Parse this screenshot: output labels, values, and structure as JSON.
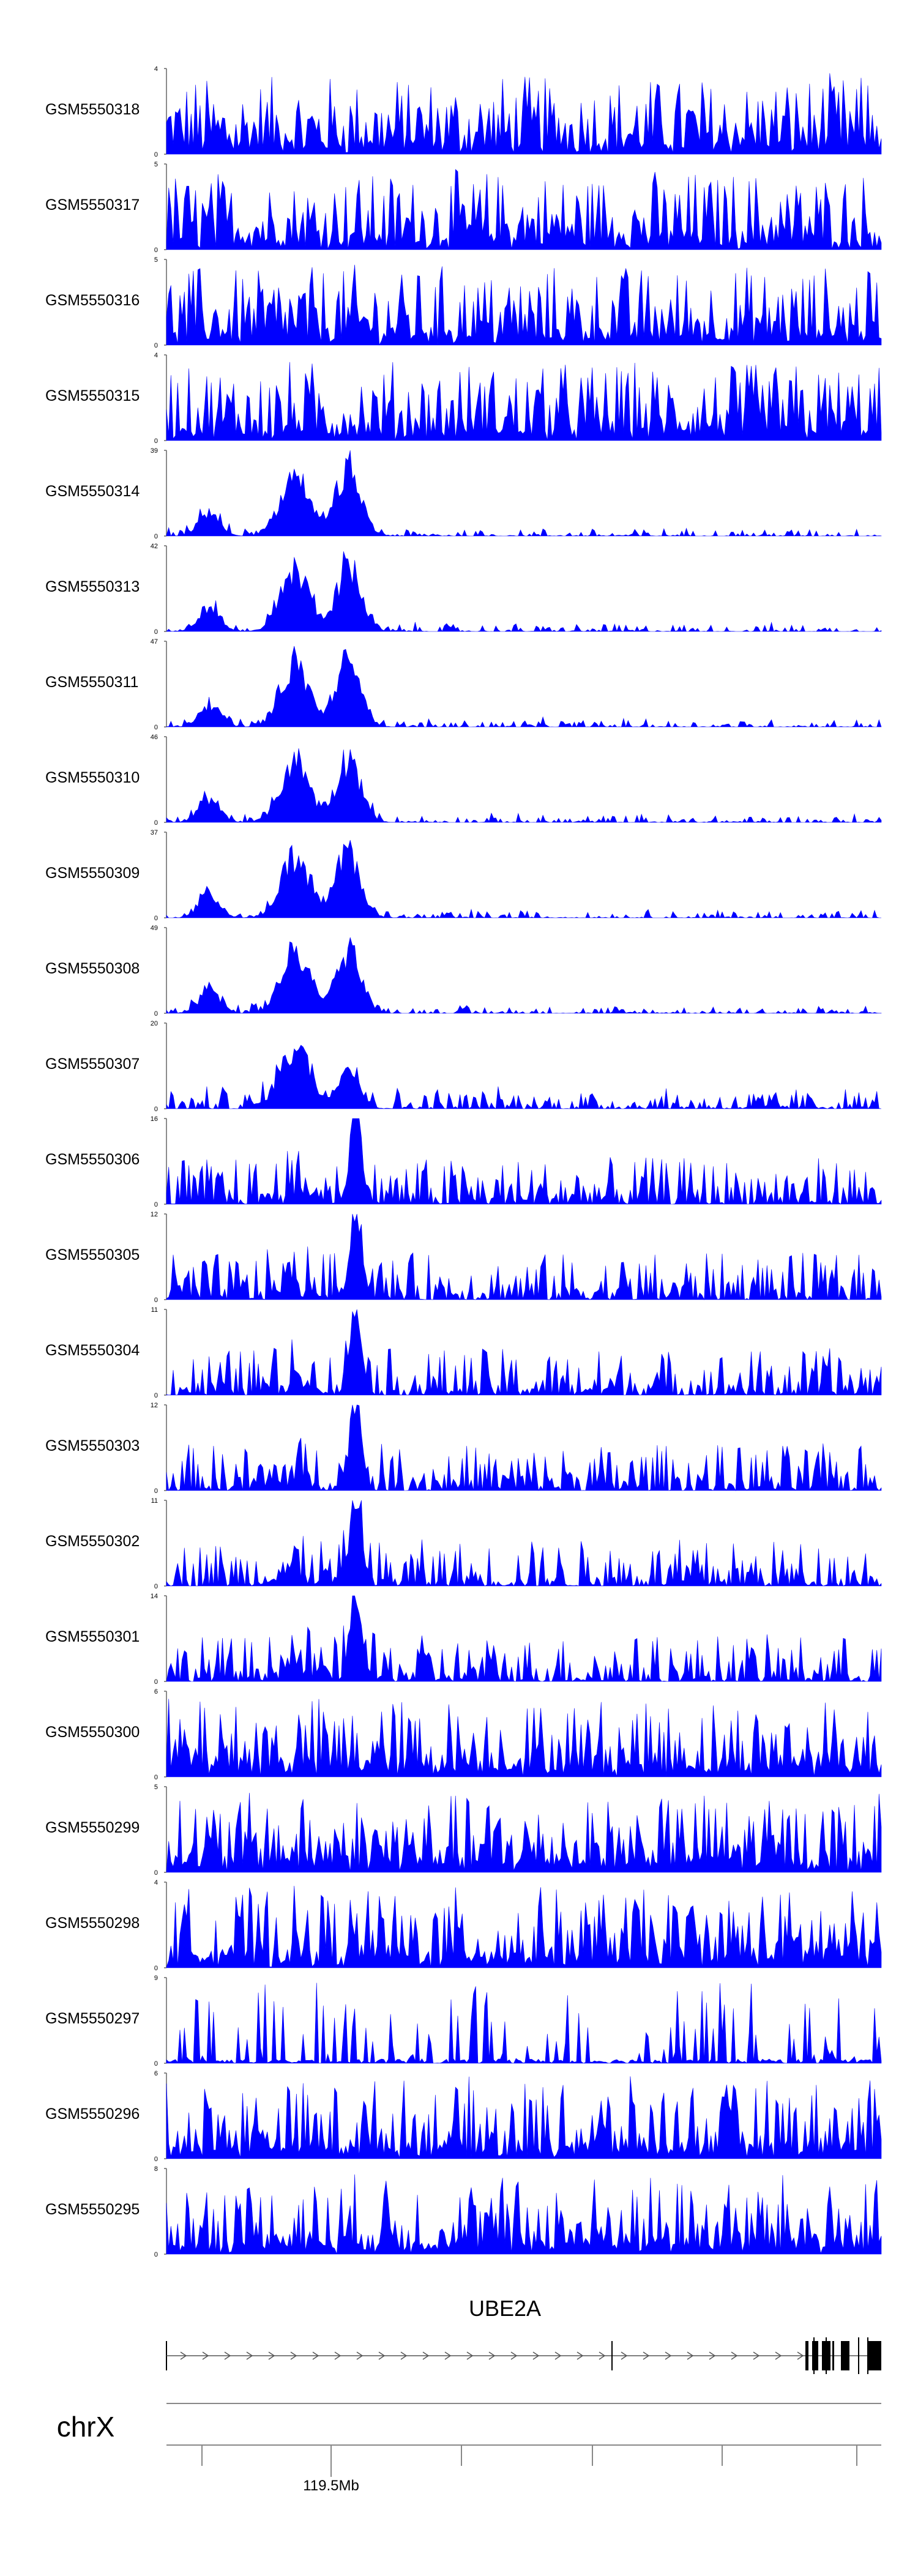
{
  "chart_data": {
    "type": "area",
    "title": "",
    "color": "#0000ff",
    "series": [
      {
        "name": "GSM5550318",
        "ymax": 4,
        "profile": "noise"
      },
      {
        "name": "GSM5550317",
        "ymax": 5,
        "profile": "noise"
      },
      {
        "name": "GSM5550316",
        "ymax": 5,
        "profile": "noise"
      },
      {
        "name": "GSM5550315",
        "ymax": 4,
        "profile": "noise"
      },
      {
        "name": "GSM5550314",
        "ymax": 39,
        "profile": "peaks"
      },
      {
        "name": "GSM5550313",
        "ymax": 42,
        "profile": "peaks"
      },
      {
        "name": "GSM5550311",
        "ymax": 47,
        "profile": "peaks"
      },
      {
        "name": "GSM5550310",
        "ymax": 46,
        "profile": "peaks"
      },
      {
        "name": "GSM5550309",
        "ymax": 37,
        "profile": "peaks"
      },
      {
        "name": "GSM5550308",
        "ymax": 49,
        "profile": "peaks"
      },
      {
        "name": "GSM5550307",
        "ymax": 20,
        "profile": "peaks-weak"
      },
      {
        "name": "GSM5550306",
        "ymax": 16,
        "profile": "mixed"
      },
      {
        "name": "GSM5550305",
        "ymax": 12,
        "profile": "mixed"
      },
      {
        "name": "GSM5550304",
        "ymax": 11,
        "profile": "mixed"
      },
      {
        "name": "GSM5550303",
        "ymax": 12,
        "profile": "mixed"
      },
      {
        "name": "GSM5550302",
        "ymax": 11,
        "profile": "mixed"
      },
      {
        "name": "GSM5550301",
        "ymax": 14,
        "profile": "mixed"
      },
      {
        "name": "GSM5550300",
        "ymax": 6,
        "profile": "noise"
      },
      {
        "name": "GSM5550299",
        "ymax": 5,
        "profile": "noise"
      },
      {
        "name": "GSM5550298",
        "ymax": 4,
        "profile": "noise"
      },
      {
        "name": "GSM5550297",
        "ymax": 9,
        "profile": "sparse"
      },
      {
        "name": "GSM5550296",
        "ymax": 6,
        "profile": "noise"
      },
      {
        "name": "GSM5550295",
        "ymax": 8,
        "profile": "noise"
      }
    ],
    "ymin_label": "0",
    "gene": {
      "name": "UBE2A",
      "strand": "+"
    },
    "chromosome": "chrX",
    "axis": {
      "tick_label": "119.5Mb"
    }
  }
}
